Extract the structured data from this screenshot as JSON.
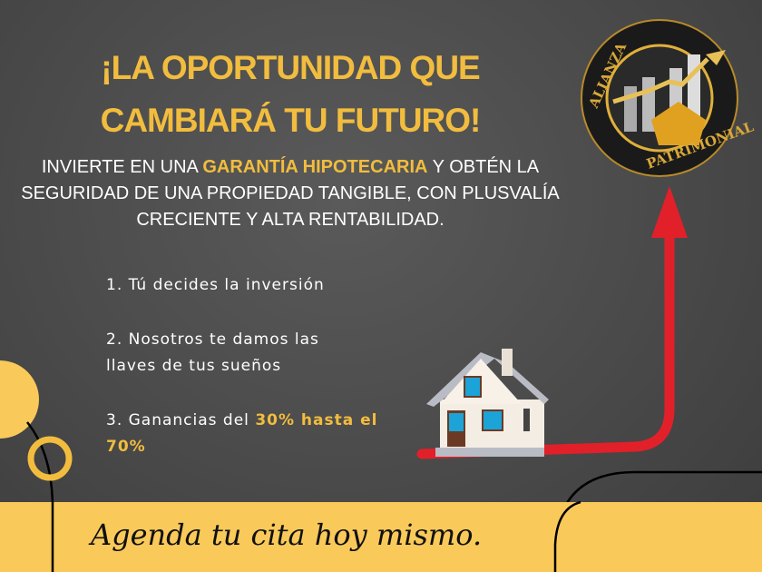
{
  "headline": {
    "line1": "¡LA OPORTUNIDAD QUE",
    "line2": "CAMBIARÁ TU FUTURO!"
  },
  "subtitle": {
    "part1": "INVIERTE EN UNA ",
    "highlight": "GARANTÍA HIPOTECARIA",
    "part2": " Y OBTÉN LA SEGURIDAD DE UNA PROPIEDAD TANGIBLE, CON PLUSVALÍA CRECIENTE Y ALTA RENTABILIDAD."
  },
  "steps": [
    {
      "text": "1. Tú decides la inversión"
    },
    {
      "text": "2. Nosotros te damos las llaves de tus sueños"
    },
    {
      "text": "3. Ganancias del ",
      "highlight": "30% hasta el 70%"
    }
  ],
  "logo": {
    "top_text": "ALIANZA",
    "bottom_text": "PATRIMONIAL"
  },
  "cta": "Agenda tu cita hoy mismo.",
  "colors": {
    "accent": "#f2bd3e",
    "banner": "#f9c95a",
    "arrow": "#e2202a",
    "background": "#4a4a4a"
  }
}
